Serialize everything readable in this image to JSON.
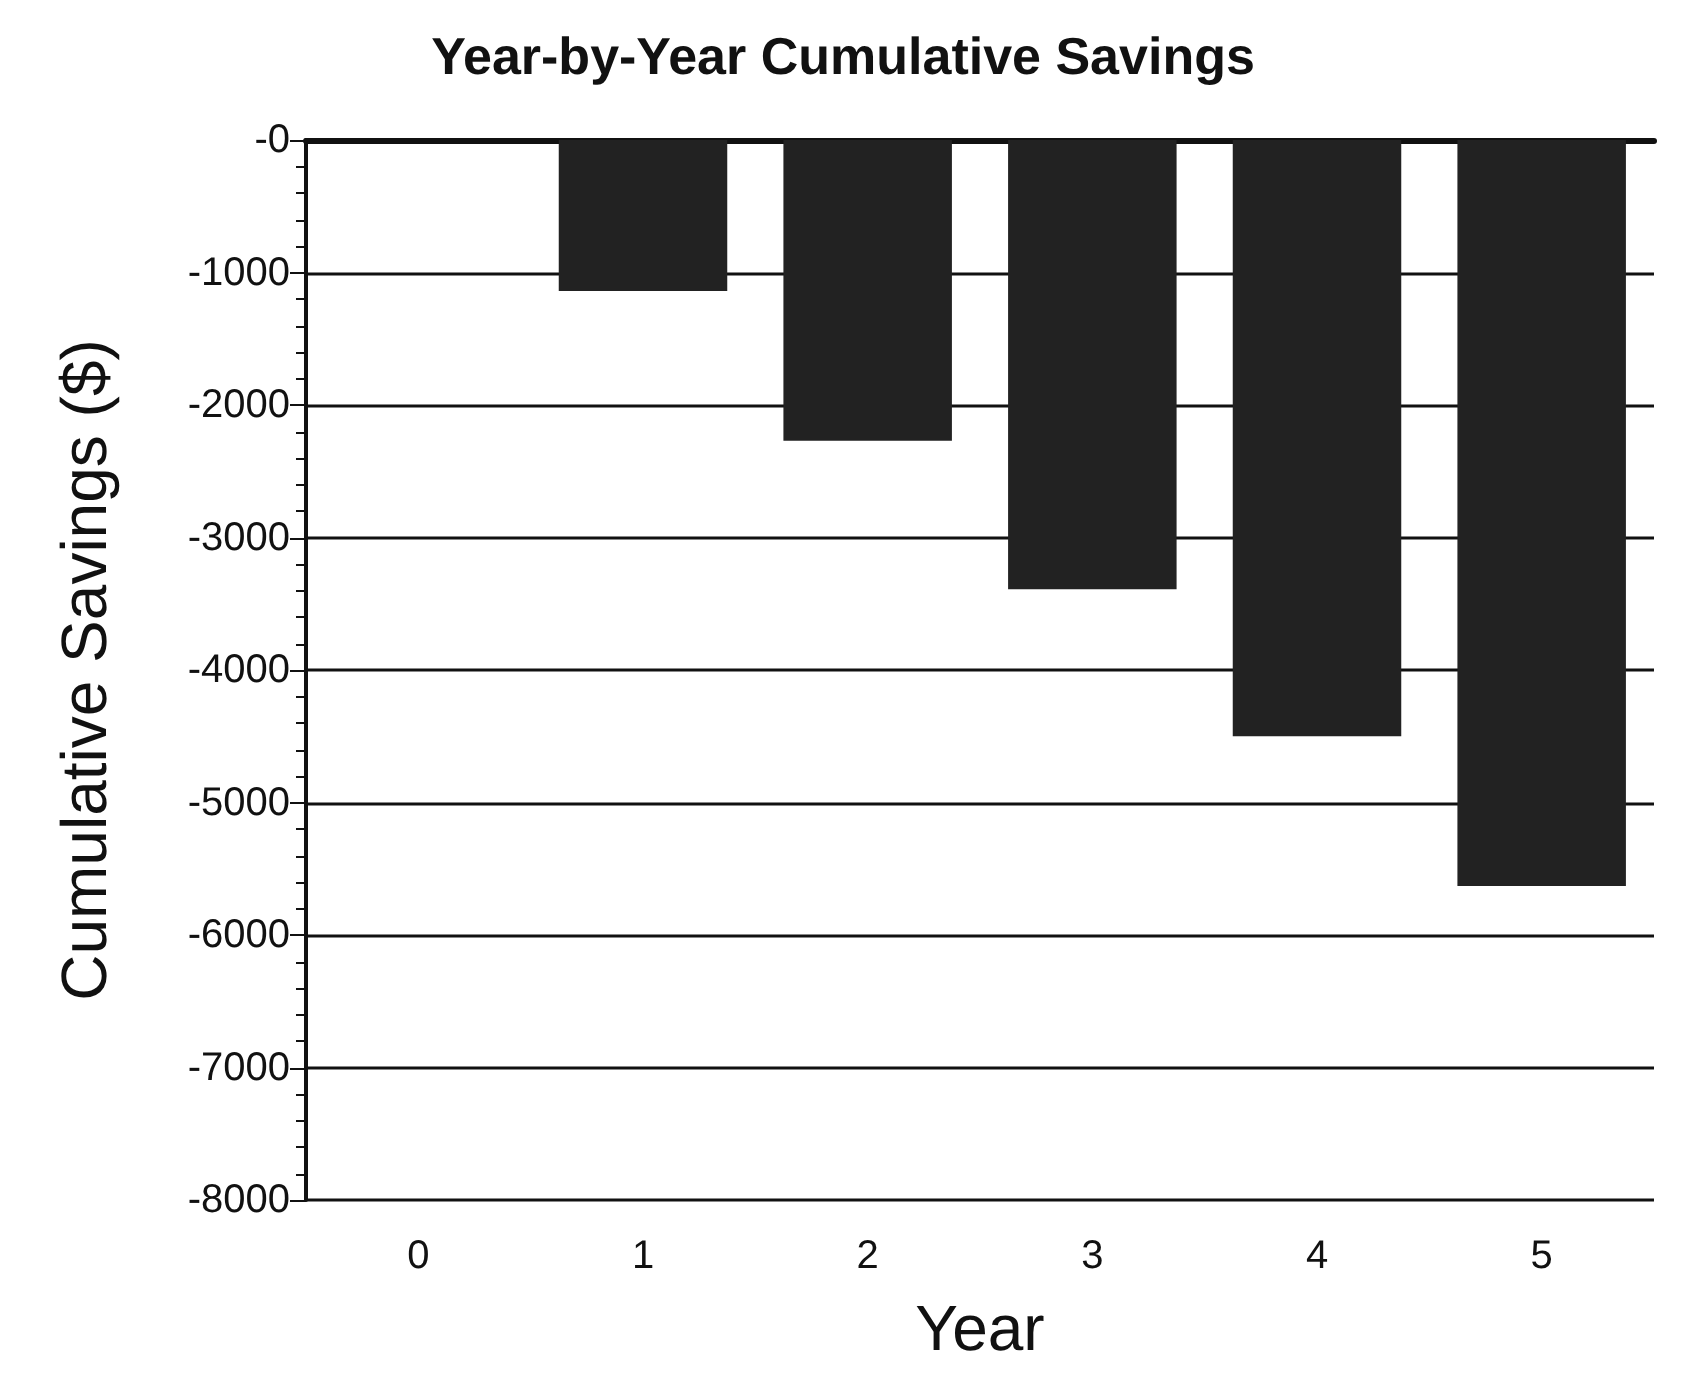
{
  "chart_data": {
    "type": "bar",
    "title": "Year-by-Year Cumulative Savings",
    "xlabel": "Year",
    "ylabel": "Cumulative Savings ($)",
    "categories": [
      "0",
      "1",
      "2",
      "3",
      "4",
      "5"
    ],
    "values": [
      0,
      -1140,
      -2270,
      -3390,
      -4500,
      -5630
    ],
    "color": "#222222",
    "ylim": [
      -8000,
      0
    ],
    "yticks": [
      -8000,
      -7000,
      -6000,
      -5000,
      -4000,
      -3000,
      -2000,
      -1000,
      {
        "value": 0,
        "label": "-0"
      }
    ],
    "grid": "y"
  }
}
